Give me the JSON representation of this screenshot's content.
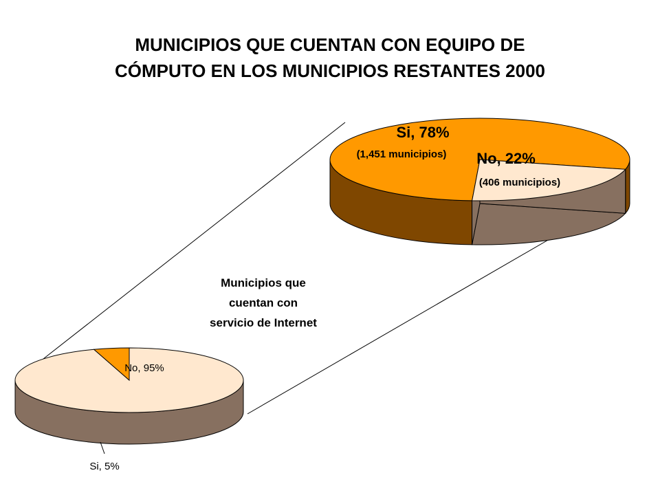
{
  "title_lines": [
    "MUNICIPIOS QUE CUENTAN CON EQUIPO DE",
    "CÓMPUTO EN LOS MUNICIPIOS RESTANTES 2000"
  ],
  "colors": {
    "orange_top": "#ff9900",
    "orange_side": "#7f4700",
    "peach_top": "#ffe8cf",
    "peach_side": "#877060",
    "outline": "#000000"
  },
  "chart_data": [
    {
      "type": "pie",
      "subtitle": "Municipios que cuentan con servicio de Internet",
      "subtitle_lines": [
        "Municipios que",
        "cuentan con",
        "servicio de Internet"
      ],
      "slices": [
        {
          "label": "No, 95%",
          "value": 95
        },
        {
          "label": "Si, 5%",
          "value": 5
        }
      ]
    },
    {
      "type": "pie",
      "slices": [
        {
          "label": "Si, 78%",
          "detail": "(1,451 municipios)",
          "value": 78
        },
        {
          "label": "No, 22%",
          "detail": "(406 municipios)",
          "value": 22
        }
      ]
    }
  ]
}
